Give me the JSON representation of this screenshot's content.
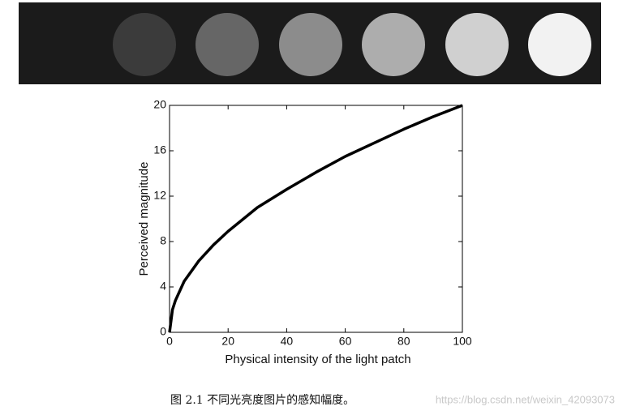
{
  "chart_data": {
    "type": "line",
    "xlabel": "Physical intensity of the light patch",
    "ylabel": "Perceived magnitude",
    "x": [
      0,
      1,
      2,
      5,
      10,
      15,
      20,
      30,
      40,
      50,
      60,
      70,
      80,
      90,
      100
    ],
    "series": [
      {
        "color": "#000000",
        "values": [
          0,
          2,
          2.8,
          4.5,
          6.3,
          7.7,
          8.9,
          11,
          12.6,
          14.1,
          15.5,
          16.7,
          17.9,
          19,
          20
        ]
      }
    ],
    "xlim": [
      0,
      100
    ],
    "xticks": [
      0,
      20,
      40,
      60,
      80,
      100
    ],
    "ylim": [
      0,
      20
    ],
    "yticks": [
      0,
      4,
      8,
      12,
      16,
      20
    ],
    "caption": "图 2.1  不同光亮度图片的感知幅度。",
    "watermark": "https://blog.csdn.net/weixin_42093073"
  }
}
